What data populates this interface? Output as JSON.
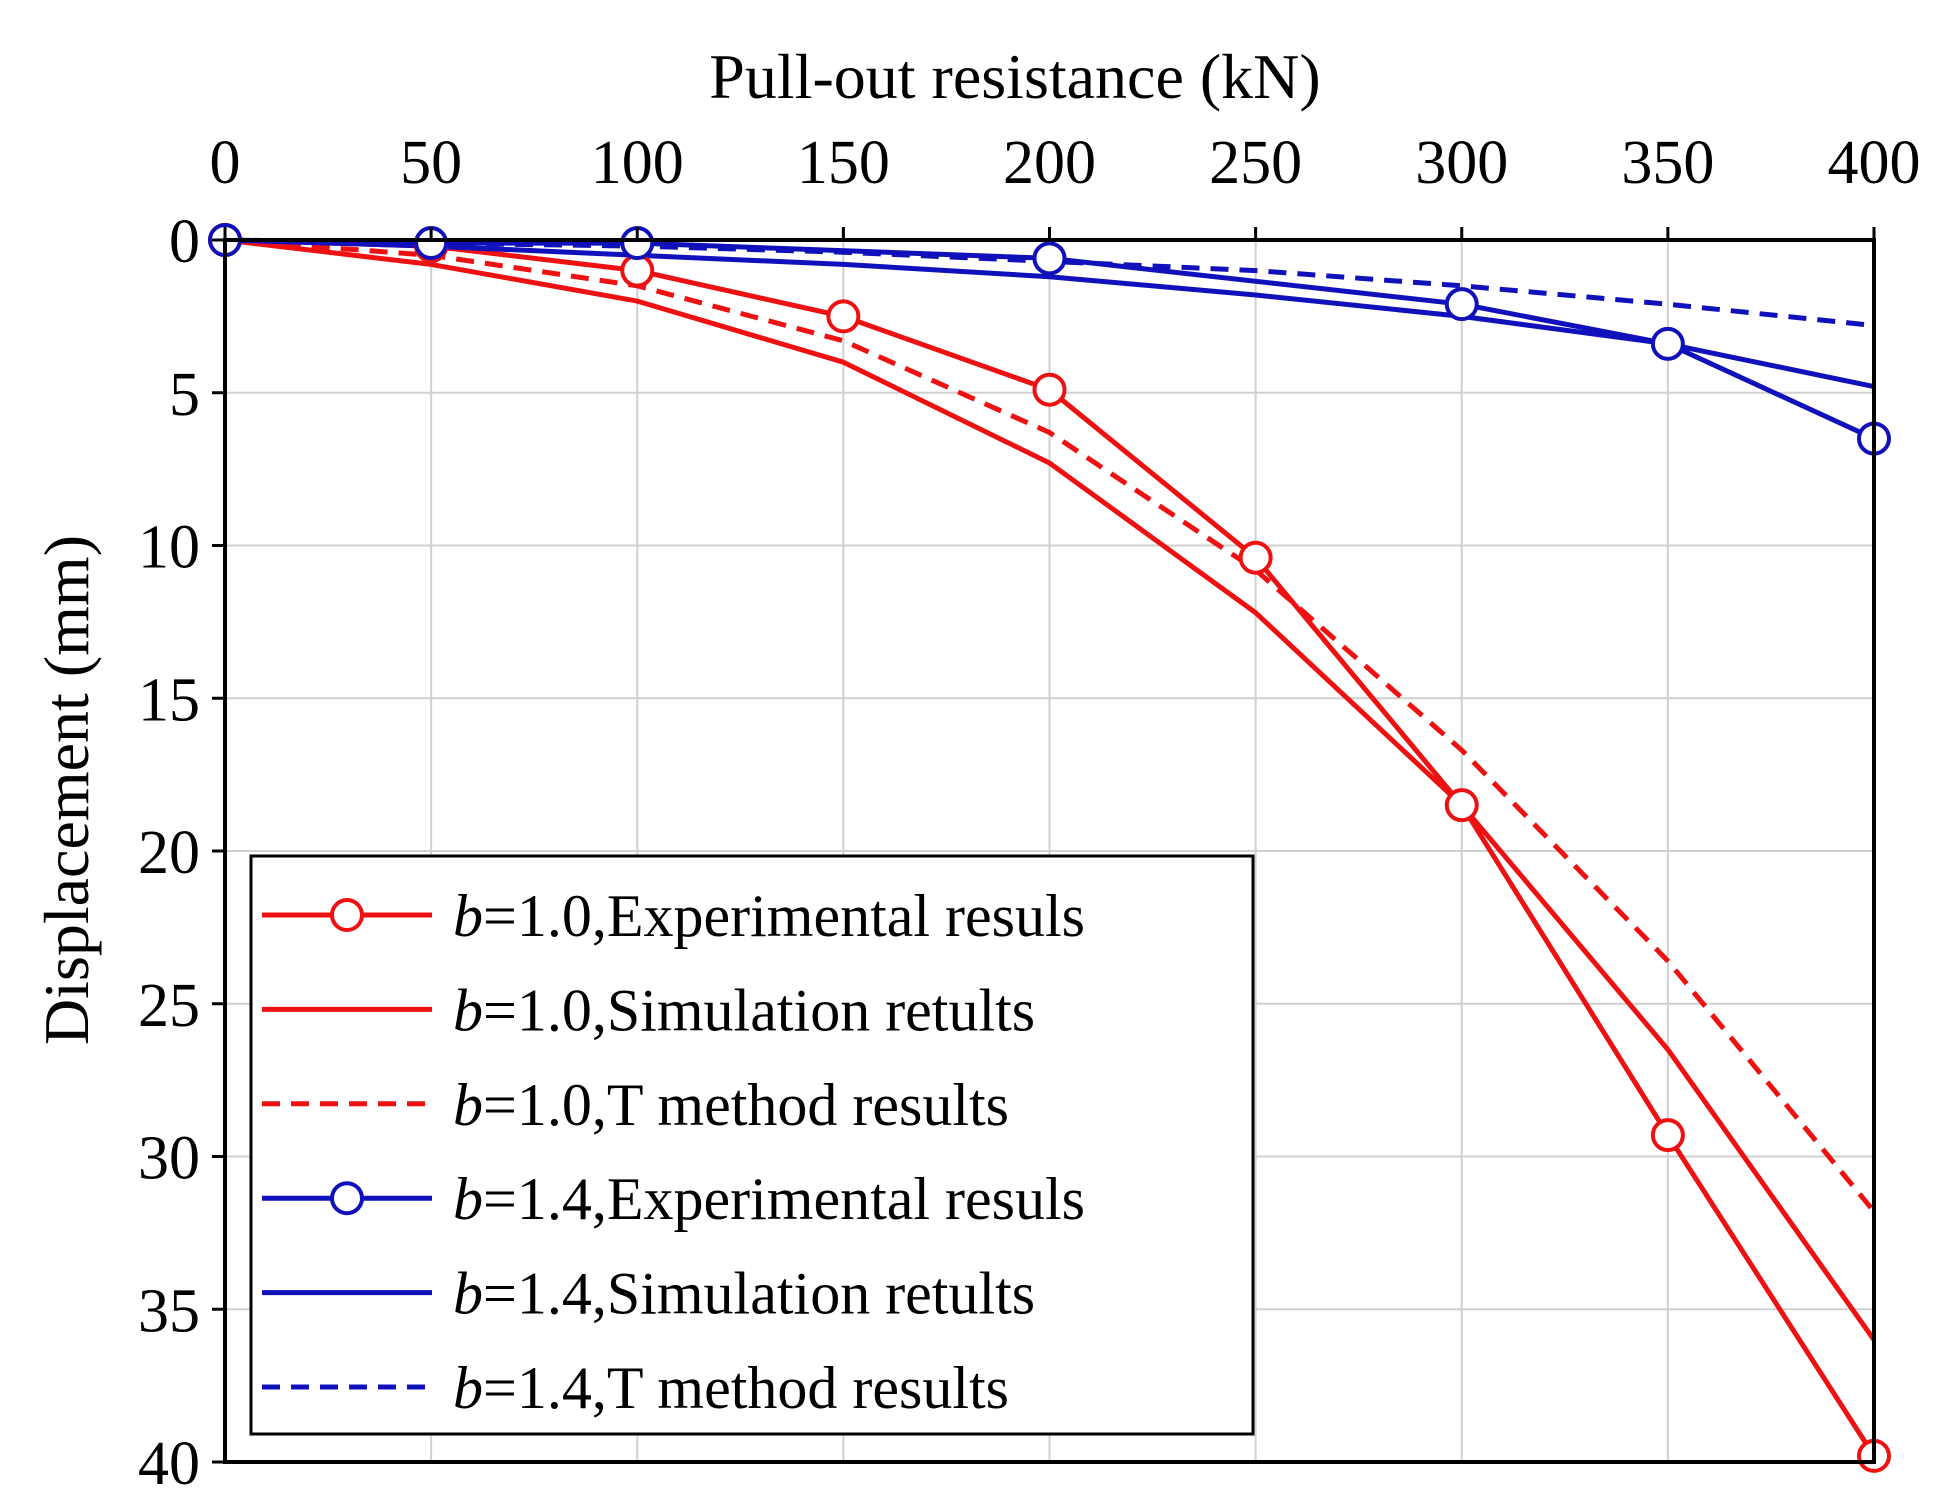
{
  "chart_data": {
    "type": "line",
    "xlabel": "Pull-out resistance (kN)",
    "ylabel": "Displacement (mm)",
    "xlim": [
      0,
      400
    ],
    "ylim": [
      0,
      40
    ],
    "y_inverted": true,
    "x_axis_position": "top",
    "grid": true,
    "x_ticks": [
      0,
      50,
      100,
      150,
      200,
      250,
      300,
      350,
      400
    ],
    "y_ticks": [
      0,
      5,
      10,
      15,
      20,
      25,
      30,
      35,
      40
    ],
    "x_tick_labels": [
      "0",
      "50",
      "100",
      "150",
      "200",
      "250",
      "300",
      "350",
      "400"
    ],
    "y_tick_labels": [
      "0",
      "5",
      "10",
      "15",
      "20",
      "25",
      "30",
      "35",
      "40"
    ],
    "legend_position": "bottom-left",
    "series": [
      {
        "name": "b=1.0,Experimental resuls",
        "legend_var": "b",
        "legend_rest": "=1.0,Experimental resuls",
        "color": "#ee1111",
        "style": "solid-marker",
        "x": [
          0,
          50,
          100,
          150,
          200,
          250,
          300,
          350,
          400
        ],
        "y": [
          0,
          0.2,
          1.0,
          2.5,
          4.9,
          10.4,
          18.5,
          29.3,
          39.8
        ]
      },
      {
        "name": "b=1.0,Simulation retults",
        "legend_var": "b",
        "legend_rest": "=1.0,Simulation retults",
        "color": "#ee1111",
        "style": "solid",
        "x": [
          0,
          50,
          100,
          150,
          200,
          250,
          300,
          350,
          400
        ],
        "y": [
          0,
          0.8,
          2.0,
          4.0,
          7.3,
          12.2,
          18.5,
          26.5,
          36.0
        ]
      },
      {
        "name": "b=1.0,T method results",
        "legend_var": "b",
        "legend_rest": "=1.0,T method results",
        "color": "#ee1111",
        "style": "dashed",
        "x": [
          0,
          50,
          100,
          150,
          200,
          250,
          300,
          350,
          400
        ],
        "y": [
          0,
          0.5,
          1.5,
          3.3,
          6.3,
          10.8,
          16.7,
          23.6,
          31.8
        ]
      },
      {
        "name": "b=1.4,Experimental resuls",
        "legend_var": "b",
        "legend_rest": "=1.4,Experimental resuls",
        "color": "#1111bb",
        "style": "solid-marker",
        "x": [
          0,
          50,
          100,
          200,
          300,
          350,
          400
        ],
        "y": [
          0,
          0.1,
          0.1,
          0.6,
          2.1,
          3.4,
          6.5
        ]
      },
      {
        "name": "b=1.4,Simulation retults",
        "legend_var": "b",
        "legend_rest": "=1.4,Simulation retults",
        "color": "#1111bb",
        "style": "solid",
        "x": [
          0,
          50,
          100,
          150,
          200,
          250,
          300,
          350,
          400
        ],
        "y": [
          0,
          0.2,
          0.5,
          0.8,
          1.2,
          1.8,
          2.5,
          3.4,
          4.8
        ]
      },
      {
        "name": "b=1.4,T method results",
        "legend_var": "b",
        "legend_rest": "=1.4,T method results",
        "color": "#1111bb",
        "style": "dashed",
        "x": [
          0,
          50,
          100,
          150,
          200,
          250,
          300,
          350,
          400
        ],
        "y": [
          0,
          0.1,
          0.2,
          0.4,
          0.7,
          1.0,
          1.5,
          2.1,
          2.8
        ]
      }
    ]
  }
}
